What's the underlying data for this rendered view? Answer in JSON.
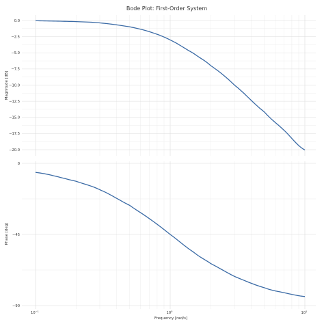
{
  "chart_data": [
    {
      "type": "line",
      "title": "Bode Plot: First-Order System",
      "xlabel": "",
      "ylabel": "Magnitude [dB]",
      "x_scale": "log",
      "xlim": [
        0.1,
        10
      ],
      "ylim": [
        -20.8,
        0.8
      ],
      "grid": true,
      "yticks": [
        0.0,
        -2.5,
        -5.0,
        -7.5,
        -10.0,
        -12.5,
        -15.0,
        -17.5,
        -20.0
      ],
      "ytick_labels": [
        "0.0",
        "−2.5",
        "−5.0",
        "−7.5",
        "−10.0",
        "−12.5",
        "−15.0",
        "−17.5",
        "−20.0"
      ],
      "xtick_labels": [],
      "series": [
        {
          "color": "#3a6aa5",
          "x": [
            0.1,
            0.2,
            0.3,
            0.5,
            0.7,
            1.0,
            1.5,
            2.0,
            3.0,
            5.0,
            7.0,
            10.0
          ],
          "y": [
            -0.04,
            -0.17,
            -0.37,
            -0.97,
            -1.73,
            -3.01,
            -5.12,
            -6.99,
            -10.0,
            -14.15,
            -16.99,
            -20.04
          ]
        }
      ]
    },
    {
      "type": "line",
      "title": "",
      "xlabel": "Frequency [rad/s]",
      "ylabel": "Phase [deg]",
      "x_scale": "log",
      "xlim": [
        0.1,
        10
      ],
      "ylim": [
        -90,
        0
      ],
      "grid": true,
      "yticks": [
        0,
        -45,
        -90
      ],
      "ytick_labels": [
        "0",
        "−45",
        "−90"
      ],
      "xticks": [
        0.1,
        1,
        10
      ],
      "xtick_base": "10",
      "xtick_exponents": [
        "−1",
        "0",
        "1"
      ],
      "series": [
        {
          "color": "#3a6aa5",
          "x": [
            0.1,
            0.2,
            0.3,
            0.5,
            0.7,
            1.0,
            1.5,
            2.0,
            3.0,
            5.0,
            7.0,
            10.0
          ],
          "y": [
            -5.71,
            -11.31,
            -16.7,
            -26.57,
            -34.99,
            -45.0,
            -56.31,
            -63.43,
            -71.57,
            -78.69,
            -81.87,
            -84.29
          ]
        }
      ]
    }
  ]
}
